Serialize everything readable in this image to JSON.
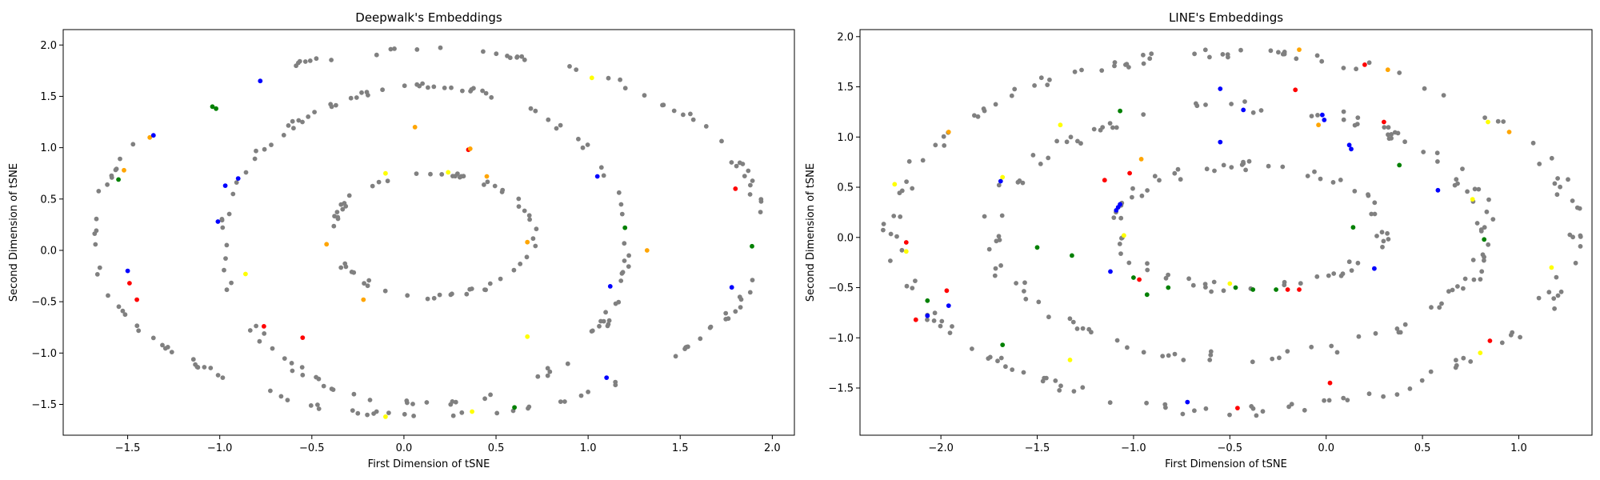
{
  "chart_data": [
    {
      "type": "scatter",
      "title": "Deepwalk's Embeddings",
      "xlabel": "First Dimension of tSNE",
      "ylabel": "Second Dimension of tSNE",
      "xlim": [
        -1.85,
        2.12
      ],
      "ylim": [
        -1.8,
        2.15
      ],
      "xticks": [
        -1.5,
        -1.0,
        -0.5,
        0.0,
        0.5,
        1.0,
        1.5,
        2.0
      ],
      "yticks": [
        -1.5,
        -1.0,
        -0.5,
        0.0,
        0.5,
        1.0,
        1.5,
        2.0
      ],
      "grid": false,
      "colors": {
        "gray": "#808080",
        "red": "#ff0000",
        "blue": "#0000ff",
        "green": "#008000",
        "orange": "#ffa500",
        "yellow": "#ffff00"
      },
      "rings": [
        {
          "cx": 0.13,
          "cy": 0.17,
          "rx": 1.82,
          "ry": 1.78,
          "n": 130,
          "gaps": [
            [
              2.0,
              2.6
            ]
          ],
          "jitter": 0.025
        },
        {
          "cx": 0.12,
          "cy": 0.05,
          "rx": 1.1,
          "ry": 1.55,
          "n": 110,
          "gaps": [],
          "jitter": 0.03
        },
        {
          "cx": 0.15,
          "cy": 0.15,
          "rx": 0.55,
          "ry": 0.6,
          "n": 60,
          "gaps": [],
          "jitter": 0.025
        }
      ],
      "colored_points": [
        {
          "x": -1.55,
          "y": 0.69,
          "c": "green"
        },
        {
          "x": -1.52,
          "y": 0.78,
          "c": "orange"
        },
        {
          "x": -1.38,
          "y": 1.1,
          "c": "orange"
        },
        {
          "x": -1.36,
          "y": 1.12,
          "c": "blue"
        },
        {
          "x": -1.5,
          "y": -0.2,
          "c": "blue"
        },
        {
          "x": -1.49,
          "y": -0.32,
          "c": "red"
        },
        {
          "x": -1.45,
          "y": -0.48,
          "c": "red"
        },
        {
          "x": -1.04,
          "y": 1.4,
          "c": "green"
        },
        {
          "x": -1.02,
          "y": 1.38,
          "c": "green"
        },
        {
          "x": -0.78,
          "y": 1.65,
          "c": "blue"
        },
        {
          "x": -1.01,
          "y": 0.28,
          "c": "blue"
        },
        {
          "x": -0.97,
          "y": 0.63,
          "c": "blue"
        },
        {
          "x": -0.9,
          "y": 0.7,
          "c": "blue"
        },
        {
          "x": -0.86,
          "y": -0.23,
          "c": "yellow"
        },
        {
          "x": -0.76,
          "y": -0.74,
          "c": "red"
        },
        {
          "x": -0.55,
          "y": -0.85,
          "c": "red"
        },
        {
          "x": -0.42,
          "y": 0.06,
          "c": "orange"
        },
        {
          "x": -0.22,
          "y": -0.48,
          "c": "orange"
        },
        {
          "x": -0.1,
          "y": 0.75,
          "c": "yellow"
        },
        {
          "x": -0.1,
          "y": -1.62,
          "c": "yellow"
        },
        {
          "x": 0.06,
          "y": 1.2,
          "c": "orange"
        },
        {
          "x": 0.24,
          "y": 0.76,
          "c": "yellow"
        },
        {
          "x": 0.35,
          "y": 0.98,
          "c": "red"
        },
        {
          "x": 0.36,
          "y": 0.99,
          "c": "orange"
        },
        {
          "x": 0.37,
          "y": -1.57,
          "c": "yellow"
        },
        {
          "x": 0.45,
          "y": 0.72,
          "c": "orange"
        },
        {
          "x": 0.6,
          "y": -1.53,
          "c": "green"
        },
        {
          "x": 0.67,
          "y": 0.08,
          "c": "orange"
        },
        {
          "x": 0.67,
          "y": -0.84,
          "c": "yellow"
        },
        {
          "x": 1.02,
          "y": 1.68,
          "c": "yellow"
        },
        {
          "x": 1.05,
          "y": 0.72,
          "c": "blue"
        },
        {
          "x": 1.1,
          "y": -1.24,
          "c": "blue"
        },
        {
          "x": 1.12,
          "y": -0.35,
          "c": "blue"
        },
        {
          "x": 1.2,
          "y": 0.22,
          "c": "green"
        },
        {
          "x": 1.32,
          "y": 0.0,
          "c": "orange"
        },
        {
          "x": 1.78,
          "y": -0.36,
          "c": "blue"
        },
        {
          "x": 1.8,
          "y": 0.6,
          "c": "red"
        },
        {
          "x": 1.89,
          "y": 0.04,
          "c": "green"
        }
      ]
    },
    {
      "type": "scatter",
      "title": "LINE's Embeddings",
      "xlabel": "First Dimension of tSNE",
      "ylabel": "Second Dimension of tSNE",
      "xlim": [
        -2.42,
        1.38
      ],
      "ylim": [
        -1.97,
        2.07
      ],
      "xticks": [
        -2.0,
        -1.5,
        -1.0,
        -0.5,
        0.0,
        0.5,
        1.0
      ],
      "yticks": [
        -1.5,
        -1.0,
        -0.5,
        0.0,
        0.5,
        1.0,
        1.5,
        2.0
      ],
      "grid": false,
      "colors": {
        "gray": "#808080",
        "red": "#ff0000",
        "blue": "#0000ff",
        "green": "#008000",
        "orange": "#ffa500",
        "yellow": "#ffff00"
      },
      "rings": [
        {
          "cx": -0.48,
          "cy": 0.05,
          "rx": 1.77,
          "ry": 1.78,
          "n": 150,
          "gaps": [],
          "jitter": 0.05
        },
        {
          "cx": -0.45,
          "cy": 0.05,
          "rx": 1.28,
          "ry": 1.25,
          "n": 120,
          "gaps": [],
          "jitter": 0.06
        },
        {
          "cx": -0.4,
          "cy": 0.1,
          "rx": 0.7,
          "ry": 0.62,
          "n": 70,
          "gaps": [],
          "jitter": 0.05
        }
      ],
      "colored_points": [
        {
          "x": -2.24,
          "y": 0.53,
          "c": "yellow"
        },
        {
          "x": -2.18,
          "y": -0.05,
          "c": "red"
        },
        {
          "x": -2.18,
          "y": -0.14,
          "c": "yellow"
        },
        {
          "x": -2.13,
          "y": -0.82,
          "c": "red"
        },
        {
          "x": -2.07,
          "y": -0.63,
          "c": "green"
        },
        {
          "x": -2.07,
          "y": -0.78,
          "c": "blue"
        },
        {
          "x": -1.97,
          "y": -0.53,
          "c": "red"
        },
        {
          "x": -1.96,
          "y": -0.68,
          "c": "blue"
        },
        {
          "x": -1.96,
          "y": 1.05,
          "c": "orange"
        },
        {
          "x": -1.69,
          "y": 0.56,
          "c": "blue"
        },
        {
          "x": -1.68,
          "y": 0.6,
          "c": "yellow"
        },
        {
          "x": -1.68,
          "y": -1.07,
          "c": "green"
        },
        {
          "x": -1.5,
          "y": -0.1,
          "c": "green"
        },
        {
          "x": -1.38,
          "y": 1.12,
          "c": "yellow"
        },
        {
          "x": -1.33,
          "y": -1.22,
          "c": "yellow"
        },
        {
          "x": -1.32,
          "y": -0.18,
          "c": "green"
        },
        {
          "x": -1.15,
          "y": 0.57,
          "c": "red"
        },
        {
          "x": -1.12,
          "y": -0.34,
          "c": "blue"
        },
        {
          "x": -1.08,
          "y": 0.3,
          "c": "blue"
        },
        {
          "x": -1.07,
          "y": 0.33,
          "c": "blue"
        },
        {
          "x": -1.09,
          "y": 0.27,
          "c": "blue"
        },
        {
          "x": -1.07,
          "y": 1.26,
          "c": "green"
        },
        {
          "x": -1.05,
          "y": 0.02,
          "c": "yellow"
        },
        {
          "x": -1.02,
          "y": 0.64,
          "c": "red"
        },
        {
          "x": -1.0,
          "y": -0.4,
          "c": "green"
        },
        {
          "x": -0.97,
          "y": -0.42,
          "c": "red"
        },
        {
          "x": -0.96,
          "y": 0.78,
          "c": "orange"
        },
        {
          "x": -0.93,
          "y": -0.57,
          "c": "green"
        },
        {
          "x": -0.82,
          "y": -0.5,
          "c": "green"
        },
        {
          "x": -0.72,
          "y": -1.64,
          "c": "blue"
        },
        {
          "x": -0.55,
          "y": 0.95,
          "c": "blue"
        },
        {
          "x": -0.55,
          "y": 1.48,
          "c": "blue"
        },
        {
          "x": -0.5,
          "y": -0.46,
          "c": "yellow"
        },
        {
          "x": -0.47,
          "y": -0.5,
          "c": "green"
        },
        {
          "x": -0.46,
          "y": -1.7,
          "c": "red"
        },
        {
          "x": -0.43,
          "y": 1.27,
          "c": "blue"
        },
        {
          "x": -0.38,
          "y": -0.52,
          "c": "green"
        },
        {
          "x": -0.26,
          "y": -0.52,
          "c": "green"
        },
        {
          "x": -0.2,
          "y": -0.52,
          "c": "red"
        },
        {
          "x": -0.16,
          "y": 1.47,
          "c": "red"
        },
        {
          "x": -0.14,
          "y": 1.87,
          "c": "orange"
        },
        {
          "x": -0.14,
          "y": -0.52,
          "c": "red"
        },
        {
          "x": -0.04,
          "y": 1.12,
          "c": "orange"
        },
        {
          "x": -0.02,
          "y": 1.22,
          "c": "blue"
        },
        {
          "x": -0.01,
          "y": 1.17,
          "c": "blue"
        },
        {
          "x": 0.02,
          "y": -1.45,
          "c": "red"
        },
        {
          "x": 0.12,
          "y": 0.92,
          "c": "blue"
        },
        {
          "x": 0.13,
          "y": 0.88,
          "c": "blue"
        },
        {
          "x": 0.14,
          "y": 0.1,
          "c": "green"
        },
        {
          "x": 0.2,
          "y": 1.72,
          "c": "red"
        },
        {
          "x": 0.25,
          "y": -0.31,
          "c": "blue"
        },
        {
          "x": 0.3,
          "y": 1.15,
          "c": "red"
        },
        {
          "x": 0.32,
          "y": 1.67,
          "c": "orange"
        },
        {
          "x": 0.38,
          "y": 0.72,
          "c": "green"
        },
        {
          "x": 0.58,
          "y": 0.47,
          "c": "blue"
        },
        {
          "x": 0.76,
          "y": 0.38,
          "c": "yellow"
        },
        {
          "x": 0.8,
          "y": -1.15,
          "c": "yellow"
        },
        {
          "x": 0.82,
          "y": -0.02,
          "c": "green"
        },
        {
          "x": 0.84,
          "y": 1.15,
          "c": "yellow"
        },
        {
          "x": 0.85,
          "y": -1.03,
          "c": "red"
        },
        {
          "x": 0.95,
          "y": 1.05,
          "c": "orange"
        },
        {
          "x": 1.17,
          "y": -0.3,
          "c": "yellow"
        }
      ]
    }
  ]
}
